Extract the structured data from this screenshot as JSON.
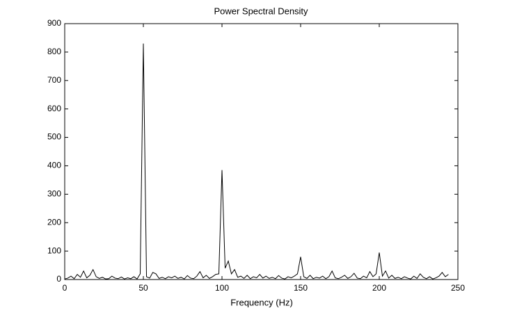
{
  "chart_data": {
    "type": "line",
    "title": "Power Spectral Density",
    "xlabel": "Frequency (Hz)",
    "x": [
      0,
      2,
      4,
      6,
      8,
      10,
      12,
      14,
      16,
      18,
      20,
      22,
      24,
      26,
      28,
      30,
      32,
      34,
      36,
      38,
      40,
      42,
      44,
      46,
      48,
      50,
      52,
      54,
      56,
      58,
      60,
      62,
      64,
      66,
      68,
      70,
      72,
      74,
      76,
      78,
      80,
      82,
      84,
      86,
      88,
      90,
      92,
      94,
      96,
      98,
      100,
      102,
      104,
      106,
      108,
      110,
      112,
      114,
      116,
      118,
      120,
      122,
      124,
      126,
      128,
      130,
      132,
      134,
      136,
      138,
      140,
      142,
      144,
      146,
      148,
      150,
      152,
      154,
      156,
      158,
      160,
      162,
      164,
      166,
      168,
      170,
      172,
      174,
      176,
      178,
      180,
      182,
      184,
      186,
      188,
      190,
      192,
      194,
      196,
      198,
      200,
      202,
      204,
      206,
      208,
      210,
      212,
      214,
      216,
      218,
      220,
      222,
      224,
      226,
      228,
      230,
      232,
      234,
      236,
      238,
      240,
      242,
      244
    ],
    "series": [
      {
        "color": "#000000",
        "values": [
          2,
          5,
          12,
          3,
          18,
          8,
          30,
          6,
          15,
          35,
          10,
          4,
          8,
          2,
          3,
          12,
          5,
          3,
          9,
          2,
          6,
          3,
          10,
          2,
          20,
          830,
          10,
          5,
          25,
          20,
          4,
          8,
          3,
          10,
          6,
          12,
          4,
          8,
          2,
          14,
          5,
          3,
          12,
          28,
          6,
          15,
          4,
          10,
          18,
          20,
          385,
          40,
          65,
          20,
          35,
          8,
          12,
          4,
          15,
          3,
          10,
          6,
          18,
          5,
          12,
          4,
          8,
          3,
          14,
          5,
          2,
          10,
          6,
          12,
          20,
          80,
          10,
          4,
          15,
          3,
          8,
          5,
          12,
          3,
          10,
          30,
          6,
          3,
          8,
          15,
          4,
          10,
          22,
          5,
          3,
          12,
          6,
          28,
          10,
          20,
          95,
          12,
          30,
          5,
          15,
          4,
          8,
          3,
          10,
          5,
          2,
          12,
          4,
          20,
          8,
          3,
          10,
          2,
          6,
          12,
          25,
          10,
          18
        ]
      }
    ],
    "xlim": [
      0,
      250
    ],
    "xticks": [
      0,
      50,
      100,
      150,
      200,
      250
    ],
    "ylim": [
      0,
      900
    ],
    "yticks": [
      0,
      100,
      200,
      300,
      400,
      500,
      600,
      700,
      800,
      900
    ]
  }
}
